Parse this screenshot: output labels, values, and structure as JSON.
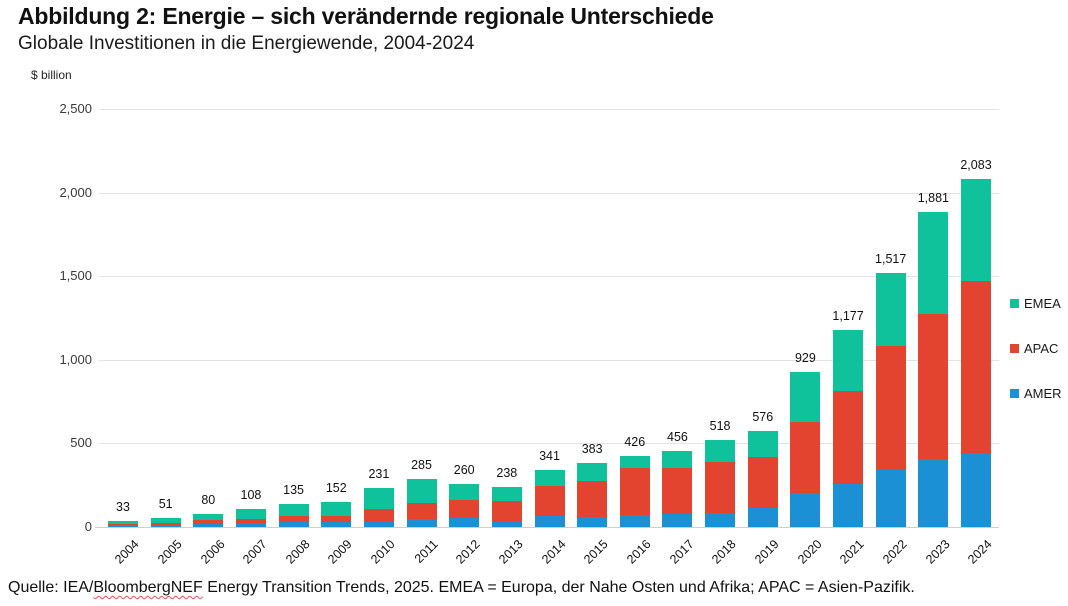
{
  "header": {
    "title": "Abbildung 2: Energie – sich verändernde regionale Unterschiede",
    "subtitle": "Globale Investitionen in die Energiewende, 2004-2024"
  },
  "chart_data": {
    "type": "bar",
    "stacked": true,
    "unit_label": "$ billion",
    "categories": [
      "2004",
      "2005",
      "2006",
      "2007",
      "2008",
      "2009",
      "2010",
      "2011",
      "2012",
      "2013",
      "2014",
      "2015",
      "2016",
      "2017",
      "2018",
      "2019",
      "2020",
      "2021",
      "2022",
      "2023",
      "2024"
    ],
    "series": [
      {
        "name": "AMER",
        "color": "#1b90d5",
        "values": [
          9,
          14,
          17,
          22,
          28,
          28,
          33,
          48,
          51,
          36,
          68,
          60,
          70,
          79,
          85,
          116,
          203,
          255,
          338,
          404,
          442
        ]
      },
      {
        "name": "APAC",
        "color": "#e3442f",
        "values": [
          8,
          10,
          22,
          28,
          35,
          40,
          72,
          94,
          111,
          122,
          175,
          218,
          281,
          274,
          302,
          305,
          424,
          556,
          744,
          867,
          1030
        ]
      },
      {
        "name": "EMEA",
        "color": "#10c29c",
        "values": [
          16,
          27,
          41,
          58,
          72,
          84,
          126,
          143,
          98,
          80,
          98,
          105,
          75,
          103,
          131,
          155,
          302,
          366,
          435,
          610,
          611
        ]
      }
    ],
    "totals": [
      33,
      51,
      80,
      108,
      135,
      152,
      231,
      285,
      260,
      238,
      341,
      383,
      426,
      456,
      518,
      576,
      929,
      1177,
      1517,
      1881,
      2083
    ],
    "total_labels": [
      "33",
      "51",
      "80",
      "108",
      "135",
      "152",
      "231",
      "285",
      "260",
      "238",
      "341",
      "383",
      "426",
      "456",
      "518",
      "576",
      "929",
      "1,177",
      "1,517",
      "1,881",
      "2,083"
    ],
    "y_ticks": [
      {
        "value": 0,
        "label": "0"
      },
      {
        "value": 500,
        "label": "500"
      },
      {
        "value": 1000,
        "label": "1,000"
      },
      {
        "value": 1500,
        "label": "1,500"
      },
      {
        "value": 2000,
        "label": "2,000"
      },
      {
        "value": 2500,
        "label": "2,500"
      }
    ],
    "ylim": [
      0,
      2500
    ],
    "grid": "horizontal",
    "legend": [
      {
        "label": "EMEA",
        "color": "#10c29c"
      },
      {
        "label": "APAC",
        "color": "#e3442f"
      },
      {
        "label": "AMER",
        "color": "#1b90d5"
      }
    ],
    "legend_position": "right"
  },
  "footer": {
    "source_prefix": "Quelle: IEA/",
    "source_misspelled": "BloombergNEF",
    "source_rest": " Energy Transition Trends, 2025. EMEA = Europa, der Nahe Osten und Afrika; APAC = Asien-Pazifik."
  }
}
